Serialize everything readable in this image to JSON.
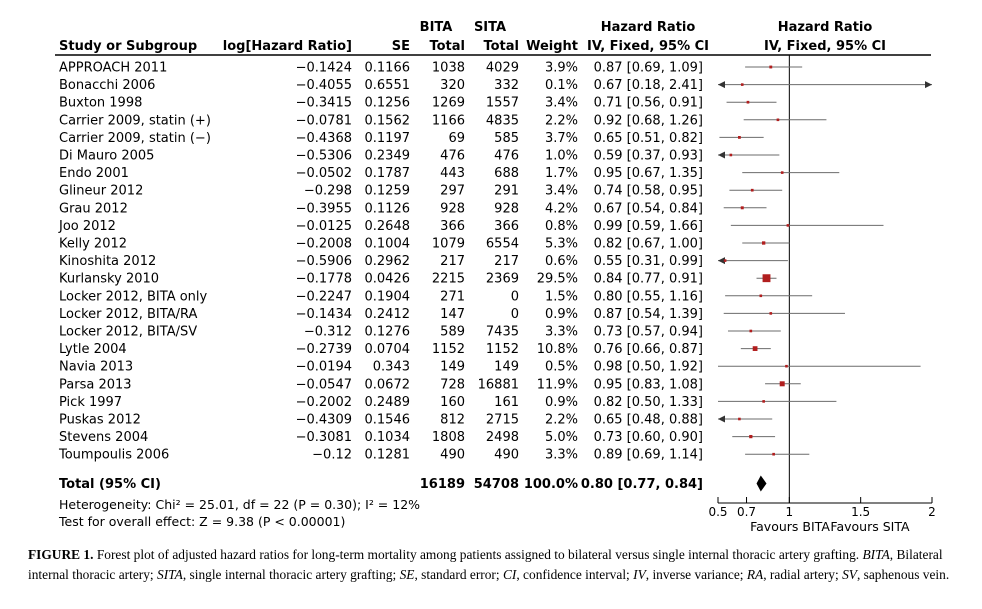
{
  "chart_data": {
    "type": "forest",
    "headers": {
      "study": "Study or Subgroup",
      "loghr": "log[Hazard Ratio]",
      "se": "SE",
      "bita_top": "BITA",
      "bita_bottom": "Total",
      "sita_top": "SITA",
      "sita_bottom": "Total",
      "weight": "Weight",
      "hr_top": "Hazard Ratio",
      "hr_bottom": "IV, Fixed, 95% CI",
      "plot_top": "Hazard Ratio",
      "plot_bottom": "IV, Fixed, 95% CI"
    },
    "studies": [
      {
        "name": "APPROACH 2011",
        "loghr": "−0.1424",
        "se": "0.1166",
        "bita": "1038",
        "sita": "4029",
        "weight": "3.9%",
        "ci": "0.87 [0.69, 1.09]",
        "hr": 0.87,
        "lo": 0.69,
        "hi": 1.09,
        "w": 3.9
      },
      {
        "name": "Bonacchi 2006",
        "loghr": "−0.4055",
        "se": "0.6551",
        "bita": "320",
        "sita": "332",
        "weight": "0.1%",
        "ci": "0.67 [0.18, 2.41]",
        "hr": 0.67,
        "lo": 0.18,
        "hi": 2.41,
        "w": 0.1
      },
      {
        "name": "Buxton 1998",
        "loghr": "−0.3415",
        "se": "0.1256",
        "bita": "1269",
        "sita": "1557",
        "weight": "3.4%",
        "ci": "0.71 [0.56, 0.91]",
        "hr": 0.71,
        "lo": 0.56,
        "hi": 0.91,
        "w": 3.4
      },
      {
        "name": "Carrier 2009, statin (+)",
        "loghr": "−0.0781",
        "se": "0.1562",
        "bita": "1166",
        "sita": "4835",
        "weight": "2.2%",
        "ci": "0.92 [0.68, 1.26]",
        "hr": 0.92,
        "lo": 0.68,
        "hi": 1.26,
        "w": 2.2
      },
      {
        "name": "Carrier 2009, statin (−)",
        "loghr": "−0.4368",
        "se": "0.1197",
        "bita": "69",
        "sita": "585",
        "weight": "3.7%",
        "ci": "0.65 [0.51, 0.82]",
        "hr": 0.65,
        "lo": 0.51,
        "hi": 0.82,
        "w": 3.7
      },
      {
        "name": "Di Mauro 2005",
        "loghr": "−0.5306",
        "se": "0.2349",
        "bita": "476",
        "sita": "476",
        "weight": "1.0%",
        "ci": "0.59 [0.37, 0.93]",
        "hr": 0.59,
        "lo": 0.37,
        "hi": 0.93,
        "w": 1.0
      },
      {
        "name": "Endo 2001",
        "loghr": "−0.0502",
        "se": "0.1787",
        "bita": "443",
        "sita": "688",
        "weight": "1.7%",
        "ci": "0.95 [0.67, 1.35]",
        "hr": 0.95,
        "lo": 0.67,
        "hi": 1.35,
        "w": 1.7
      },
      {
        "name": "Glineur 2012",
        "loghr": "−0.298",
        "se": "0.1259",
        "bita": "297",
        "sita": "291",
        "weight": "3.4%",
        "ci": "0.74 [0.58, 0.95]",
        "hr": 0.74,
        "lo": 0.58,
        "hi": 0.95,
        "w": 3.4
      },
      {
        "name": "Grau 2012",
        "loghr": "−0.3955",
        "se": "0.1126",
        "bita": "928",
        "sita": "928",
        "weight": "4.2%",
        "ci": "0.67 [0.54, 0.84]",
        "hr": 0.67,
        "lo": 0.54,
        "hi": 0.84,
        "w": 4.2
      },
      {
        "name": "Joo 2012",
        "loghr": "−0.0125",
        "se": "0.2648",
        "bita": "366",
        "sita": "366",
        "weight": "0.8%",
        "ci": "0.99 [0.59, 1.66]",
        "hr": 0.99,
        "lo": 0.59,
        "hi": 1.66,
        "w": 0.8
      },
      {
        "name": "Kelly 2012",
        "loghr": "−0.2008",
        "se": "0.1004",
        "bita": "1079",
        "sita": "6554",
        "weight": "5.3%",
        "ci": "0.82 [0.67, 1.00]",
        "hr": 0.82,
        "lo": 0.67,
        "hi": 1.0,
        "w": 5.3
      },
      {
        "name": "Kinoshita 2012",
        "loghr": "−0.5906",
        "se": "0.2962",
        "bita": "217",
        "sita": "217",
        "weight": "0.6%",
        "ci": "0.55 [0.31, 0.99]",
        "hr": 0.55,
        "lo": 0.31,
        "hi": 0.99,
        "w": 0.6
      },
      {
        "name": "Kurlansky 2010",
        "loghr": "−0.1778",
        "se": "0.0426",
        "bita": "2215",
        "sita": "2369",
        "weight": "29.5%",
        "ci": "0.84 [0.77, 0.91]",
        "hr": 0.84,
        "lo": 0.77,
        "hi": 0.91,
        "w": 29.5
      },
      {
        "name": "Locker 2012, BITA only",
        "loghr": "−0.2247",
        "se": "0.1904",
        "bita": "271",
        "sita": "0",
        "weight": "1.5%",
        "ci": "0.80 [0.55, 1.16]",
        "hr": 0.8,
        "lo": 0.55,
        "hi": 1.16,
        "w": 1.5
      },
      {
        "name": "Locker 2012, BITA/RA",
        "loghr": "−0.1434",
        "se": "0.2412",
        "bita": "147",
        "sita": "0",
        "weight": "0.9%",
        "ci": "0.87 [0.54, 1.39]",
        "hr": 0.87,
        "lo": 0.54,
        "hi": 1.39,
        "w": 0.9
      },
      {
        "name": "Locker 2012, BITA/SV",
        "loghr": "−0.312",
        "se": "0.1276",
        "bita": "589",
        "sita": "7435",
        "weight": "3.3%",
        "ci": "0.73 [0.57, 0.94]",
        "hr": 0.73,
        "lo": 0.57,
        "hi": 0.94,
        "w": 3.3
      },
      {
        "name": "Lytle 2004",
        "loghr": "−0.2739",
        "se": "0.0704",
        "bita": "1152",
        "sita": "1152",
        "weight": "10.8%",
        "ci": "0.76 [0.66, 0.87]",
        "hr": 0.76,
        "lo": 0.66,
        "hi": 0.87,
        "w": 10.8
      },
      {
        "name": "Navia 2013",
        "loghr": "−0.0194",
        "se": "0.343",
        "bita": "149",
        "sita": "149",
        "weight": "0.5%",
        "ci": "0.98 [0.50, 1.92]",
        "hr": 0.98,
        "lo": 0.5,
        "hi": 1.92,
        "w": 0.5
      },
      {
        "name": "Parsa 2013",
        "loghr": "−0.0547",
        "se": "0.0672",
        "bita": "728",
        "sita": "16881",
        "weight": "11.9%",
        "ci": "0.95 [0.83, 1.08]",
        "hr": 0.95,
        "lo": 0.83,
        "hi": 1.08,
        "w": 11.9
      },
      {
        "name": "Pick 1997",
        "loghr": "−0.2002",
        "se": "0.2489",
        "bita": "160",
        "sita": "161",
        "weight": "0.9%",
        "ci": "0.82 [0.50, 1.33]",
        "hr": 0.82,
        "lo": 0.5,
        "hi": 1.33,
        "w": 0.9
      },
      {
        "name": "Puskas 2012",
        "loghr": "−0.4309",
        "se": "0.1546",
        "bita": "812",
        "sita": "2715",
        "weight": "2.2%",
        "ci": "0.65 [0.48, 0.88]",
        "hr": 0.65,
        "lo": 0.48,
        "hi": 0.88,
        "w": 2.2
      },
      {
        "name": "Stevens 2004",
        "loghr": "−0.3081",
        "se": "0.1034",
        "bita": "1808",
        "sita": "2498",
        "weight": "5.0%",
        "ci": "0.73 [0.60, 0.90]",
        "hr": 0.73,
        "lo": 0.6,
        "hi": 0.9,
        "w": 5.0
      },
      {
        "name": "Toumpoulis 2006",
        "loghr": "−0.12",
        "se": "0.1281",
        "bita": "490",
        "sita": "490",
        "weight": "3.3%",
        "ci": "0.89 [0.69, 1.14]",
        "hr": 0.89,
        "lo": 0.69,
        "hi": 1.14,
        "w": 3.3
      }
    ],
    "total": {
      "name": "Total (95% CI)",
      "bita": "16189",
      "sita": "54708",
      "weight": "100.0%",
      "ci": "0.80 [0.77, 0.84]",
      "hr": 0.8,
      "lo": 0.77,
      "hi": 0.84
    },
    "heterogeneity": "Heterogeneity: Chi² = 25.01, df = 22 (P = 0.30); I² = 12%",
    "overall_effect": "Test for overall effect: Z = 9.38 (P < 0.00001)",
    "axis": {
      "scale": "linear",
      "xlim": [
        0.5,
        2
      ],
      "ticks": [
        "0.5",
        "0.7",
        "1",
        "1.5",
        "2"
      ],
      "tick_values": [
        0.5,
        0.7,
        1,
        1.5,
        2
      ],
      "null_line": 1
    },
    "favours_left": "Favours BITA",
    "favours_right": "Favours SITA",
    "colors": {
      "study_marker": "#b11e1e",
      "ci_line": "#6b6b6b",
      "total_marker": "#000000"
    }
  },
  "caption": {
    "label": "FIGURE 1.",
    "parts": [
      {
        "t": " Forest plot of adjusted hazard ratios for long-term mortality among patients assigned to bilateral versus single internal thoracic artery grafting. ",
        "i": false
      },
      {
        "t": "BITA",
        "i": true
      },
      {
        "t": ", Bilateral internal thoracic artery; ",
        "i": false
      },
      {
        "t": "SITA",
        "i": true
      },
      {
        "t": ", single internal thoracic artery grafting; ",
        "i": false
      },
      {
        "t": "SE",
        "i": true
      },
      {
        "t": ", standard error; ",
        "i": false
      },
      {
        "t": "CI",
        "i": true
      },
      {
        "t": ", confidence interval; ",
        "i": false
      },
      {
        "t": "IV",
        "i": true
      },
      {
        "t": ", inverse variance; ",
        "i": false
      },
      {
        "t": "RA",
        "i": true
      },
      {
        "t": ", radial artery; ",
        "i": false
      },
      {
        "t": "SV",
        "i": true
      },
      {
        "t": ", saphenous vein.",
        "i": false
      }
    ]
  }
}
